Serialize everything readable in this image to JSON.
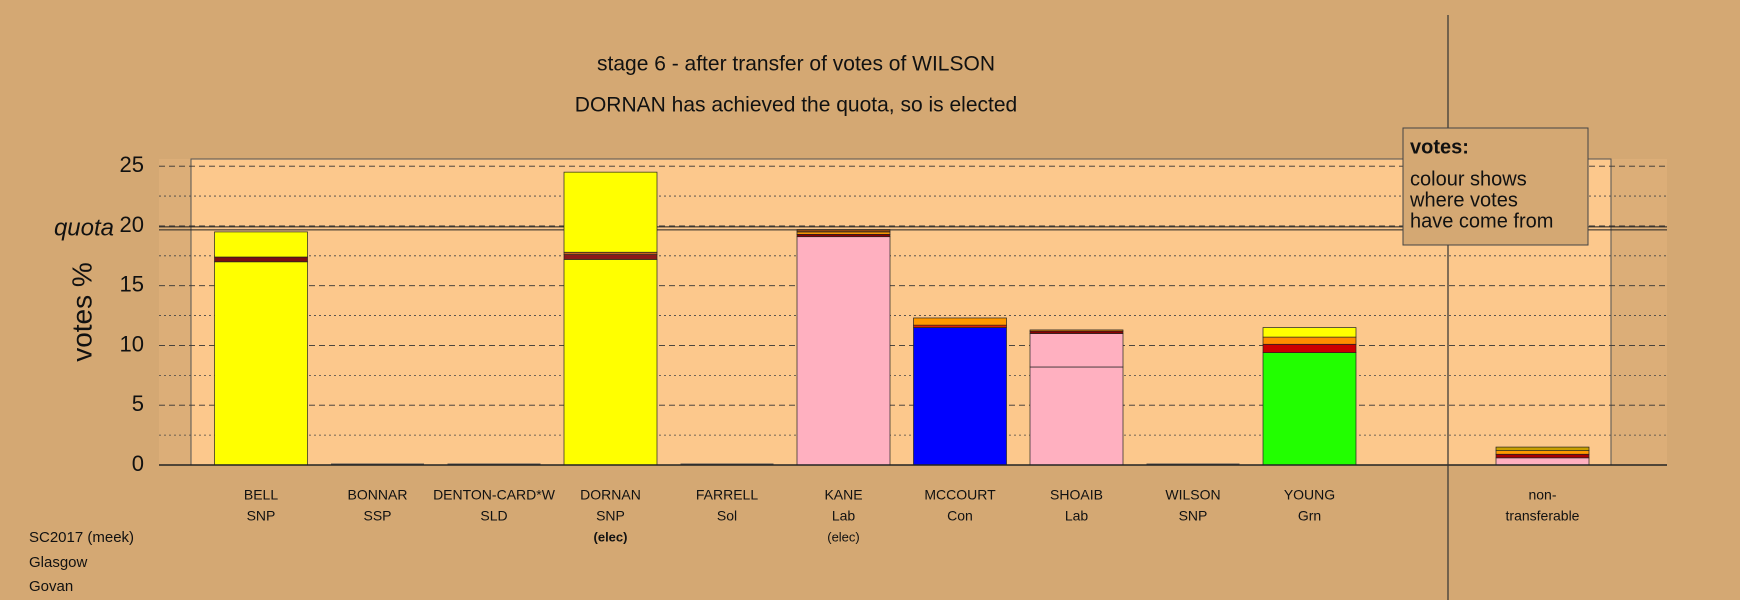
{
  "chart_data": {
    "type": "stacked-bar",
    "title": "stage 6 - after transfer of votes of WILSON",
    "subtitle": "DORNAN has achieved the quota, so is elected",
    "y_label": "votes %",
    "quota_label": "quota",
    "quota": 19.8,
    "ylim": [
      0,
      25.6
    ],
    "yticks": [
      0,
      5,
      10,
      15,
      20,
      25
    ],
    "minor_ticks": [
      2.5,
      7.5,
      12.5,
      17.5,
      22.5
    ],
    "grid": true,
    "separate_last": true,
    "highlight": 3,
    "categories": [
      "BELL",
      "BONNAR",
      "DENTON-CARD*W",
      "DORNAN",
      "FARRELL",
      "KANE",
      "MCCOURT",
      "SHOAIB",
      "WILSON",
      "YOUNG",
      "non-"
    ],
    "parties": [
      "SNP",
      "SSP",
      "SLD",
      "SNP",
      "Sol",
      "Lab",
      "Con",
      "Lab",
      "SNP",
      "Grn",
      "transferable"
    ],
    "notes": [
      null,
      null,
      null,
      "(elec)",
      null,
      "(elec)",
      null,
      null,
      null,
      null,
      null
    ],
    "bars": [
      {
        "segments": [
          {
            "color": "#ffff00",
            "value": 17.0
          },
          {
            "color": "#7a1010",
            "value": 0.4
          },
          {
            "color": "#ffff00",
            "value": 2.1
          }
        ]
      },
      {
        "segments": []
      },
      {
        "segments": []
      },
      {
        "segments": [
          {
            "color": "#ffff00",
            "value": 17.2
          },
          {
            "color": "#8b1a1a",
            "value": 0.4
          },
          {
            "color": "#c8641e",
            "value": 0.2
          },
          {
            "color": "#ffff00",
            "value": 6.7
          }
        ]
      },
      {
        "segments": []
      },
      {
        "segments": [
          {
            "color": "#ffb0c0",
            "value": 19.1
          },
          {
            "color": "#8b0000",
            "value": 0.2
          },
          {
            "color": "#ff9900",
            "value": 0.2
          },
          {
            "color": "#8b4513",
            "value": 0.2
          }
        ]
      },
      {
        "segments": [
          {
            "color": "#0000ff",
            "value": 11.5
          },
          {
            "color": "#dd2200",
            "value": 0.2
          },
          {
            "color": "#ff9900",
            "value": 0.6
          }
        ]
      },
      {
        "segments": [
          {
            "color": "#ffb0c0",
            "value": 8.2
          },
          {
            "color": "#ffb0c0",
            "value": 2.8
          },
          {
            "color": "#8b0000",
            "value": 0.2
          },
          {
            "color": "#ff9900",
            "value": 0.1
          }
        ]
      },
      {
        "segments": []
      },
      {
        "segments": [
          {
            "color": "#22ff00",
            "value": 9.4
          },
          {
            "color": "#cc0000",
            "value": 0.7
          },
          {
            "color": "#ff8c00",
            "value": 0.6
          },
          {
            "color": "#ffff00",
            "value": 0.8
          }
        ]
      },
      {
        "segments": [
          {
            "color": "#ffb0c0",
            "value": 0.6
          },
          {
            "color": "#aa0000",
            "value": 0.3
          },
          {
            "color": "#ff9900",
            "value": 0.3
          },
          {
            "color": "#c8a000",
            "value": 0.3
          }
        ]
      }
    ],
    "legend": {
      "heading": "votes:",
      "lines": [
        "colour shows",
        "where votes",
        "have come from"
      ]
    },
    "footer": [
      "SC2017 (meek)",
      "Glasgow",
      "Govan"
    ]
  }
}
